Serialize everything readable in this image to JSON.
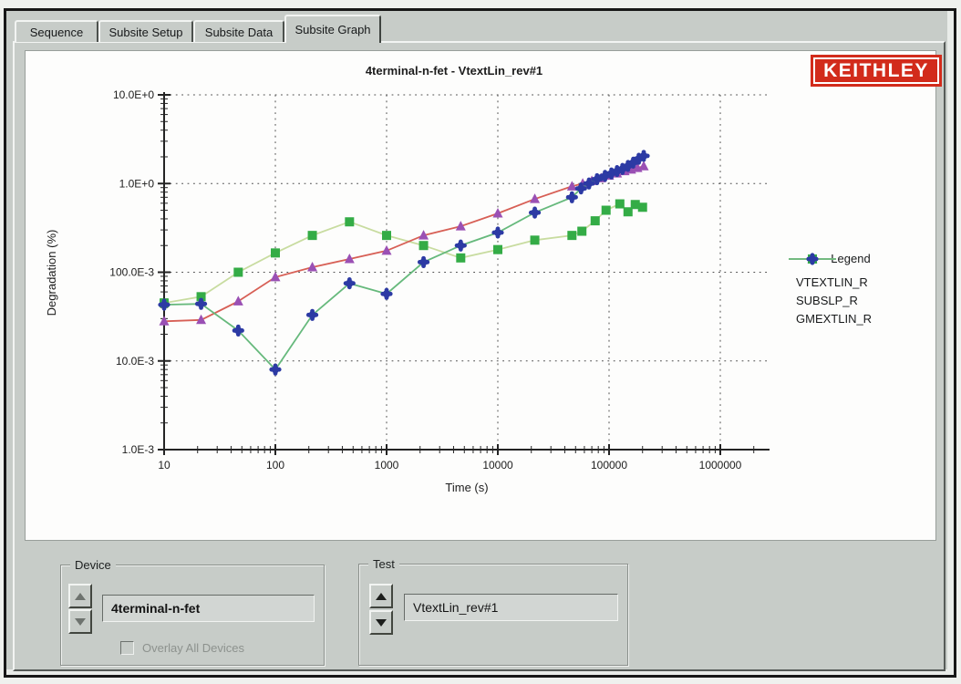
{
  "tabs": [
    {
      "label": "Sequence",
      "active": false
    },
    {
      "label": "Subsite Setup",
      "active": false
    },
    {
      "label": "Subsite Data",
      "active": false
    },
    {
      "label": "Subsite Graph",
      "active": true
    }
  ],
  "logo": {
    "text": "KEITHLEY",
    "bg_color": "#d22b1b",
    "text_color": "#ffffff"
  },
  "chart_data": {
    "type": "line",
    "title": "4terminal-n-fet - VtextLin_rev#1",
    "xlabel": "Time (s)",
    "ylabel": "Degradation (%)",
    "x_scale": "log",
    "y_scale": "log",
    "xlim": [
      10,
      1000000
    ],
    "ylim": [
      0.001,
      10
    ],
    "grid": "dotted",
    "x_ticks": [
      {
        "label": "10",
        "value": 10
      },
      {
        "label": "100",
        "value": 100
      },
      {
        "label": "1000",
        "value": 1000
      },
      {
        "label": "10000",
        "value": 10000
      },
      {
        "label": "100000",
        "value": 100000
      },
      {
        "label": "1000000",
        "value": 1000000
      }
    ],
    "y_ticks": [
      {
        "label": "10.0E+0",
        "value": 10
      },
      {
        "label": "1.0E+0",
        "value": 1
      },
      {
        "label": "100.0E-3",
        "value": 0.1
      },
      {
        "label": "10.0E-3",
        "value": 0.01
      },
      {
        "label": "1.0E-3",
        "value": 0.001
      }
    ],
    "legend": {
      "title": "Legend",
      "position": "right"
    },
    "series": [
      {
        "name": "VTEXTLIN_R",
        "marker": "triangle",
        "marker_color": "#9a50b4",
        "line_color": "#d75f55",
        "points": [
          [
            10,
            0.028
          ],
          [
            21.5,
            0.029
          ],
          [
            46.4,
            0.047
          ],
          [
            100,
            0.088
          ],
          [
            215,
            0.114
          ],
          [
            464,
            0.141
          ],
          [
            1000,
            0.175
          ],
          [
            2150,
            0.26
          ],
          [
            4640,
            0.33
          ],
          [
            10000,
            0.46
          ],
          [
            21500,
            0.67
          ],
          [
            46400,
            0.93
          ],
          [
            58000,
            1.0
          ],
          [
            70000,
            1.07
          ],
          [
            85000,
            1.15
          ],
          [
            100000,
            1.23
          ],
          [
            118000,
            1.3
          ],
          [
            138000,
            1.38
          ],
          [
            158000,
            1.44
          ],
          [
            180000,
            1.5
          ],
          [
            205000,
            1.57
          ]
        ]
      },
      {
        "name": "SUBSLP_R",
        "marker": "square",
        "marker_color": "#34ac46",
        "line_color": "#c8dca0",
        "points": [
          [
            10,
            0.045
          ],
          [
            21.5,
            0.053
          ],
          [
            46.4,
            0.1
          ],
          [
            100,
            0.165
          ],
          [
            215,
            0.26
          ],
          [
            464,
            0.37
          ],
          [
            1000,
            0.26
          ],
          [
            2150,
            0.2
          ],
          [
            4640,
            0.145
          ],
          [
            10000,
            0.18
          ],
          [
            21500,
            0.23
          ],
          [
            46400,
            0.26
          ],
          [
            57000,
            0.29
          ],
          [
            75000,
            0.38
          ],
          [
            94000,
            0.5
          ],
          [
            125000,
            0.59
          ],
          [
            148000,
            0.48
          ],
          [
            172000,
            0.58
          ],
          [
            200000,
            0.54
          ]
        ]
      },
      {
        "name": "GMEXTLIN_R",
        "marker": "clover",
        "marker_color": "#2c3aa4",
        "line_color": "#66b97c",
        "points": [
          [
            10,
            0.043
          ],
          [
            21.5,
            0.044
          ],
          [
            46.4,
            0.022
          ],
          [
            100,
            0.008
          ],
          [
            215,
            0.033
          ],
          [
            464,
            0.075
          ],
          [
            1000,
            0.057
          ],
          [
            2150,
            0.13
          ],
          [
            4640,
            0.2
          ],
          [
            10000,
            0.28
          ],
          [
            21500,
            0.47
          ],
          [
            46400,
            0.7
          ],
          [
            56000,
            0.88
          ],
          [
            66000,
            1.0
          ],
          [
            78000,
            1.12
          ],
          [
            92000,
            1.22
          ],
          [
            105000,
            1.3
          ],
          [
            118000,
            1.38
          ],
          [
            132000,
            1.46
          ],
          [
            148000,
            1.58
          ],
          [
            165000,
            1.72
          ],
          [
            185000,
            1.9
          ],
          [
            205000,
            2.05
          ]
        ]
      }
    ]
  },
  "device_group": {
    "label": "Device",
    "value": "4terminal-n-fet",
    "overlay_checkbox_label": "Overlay All Devices",
    "overlay_checked": false
  },
  "test_group": {
    "label": "Test",
    "value": "VtextLin_rev#1"
  }
}
